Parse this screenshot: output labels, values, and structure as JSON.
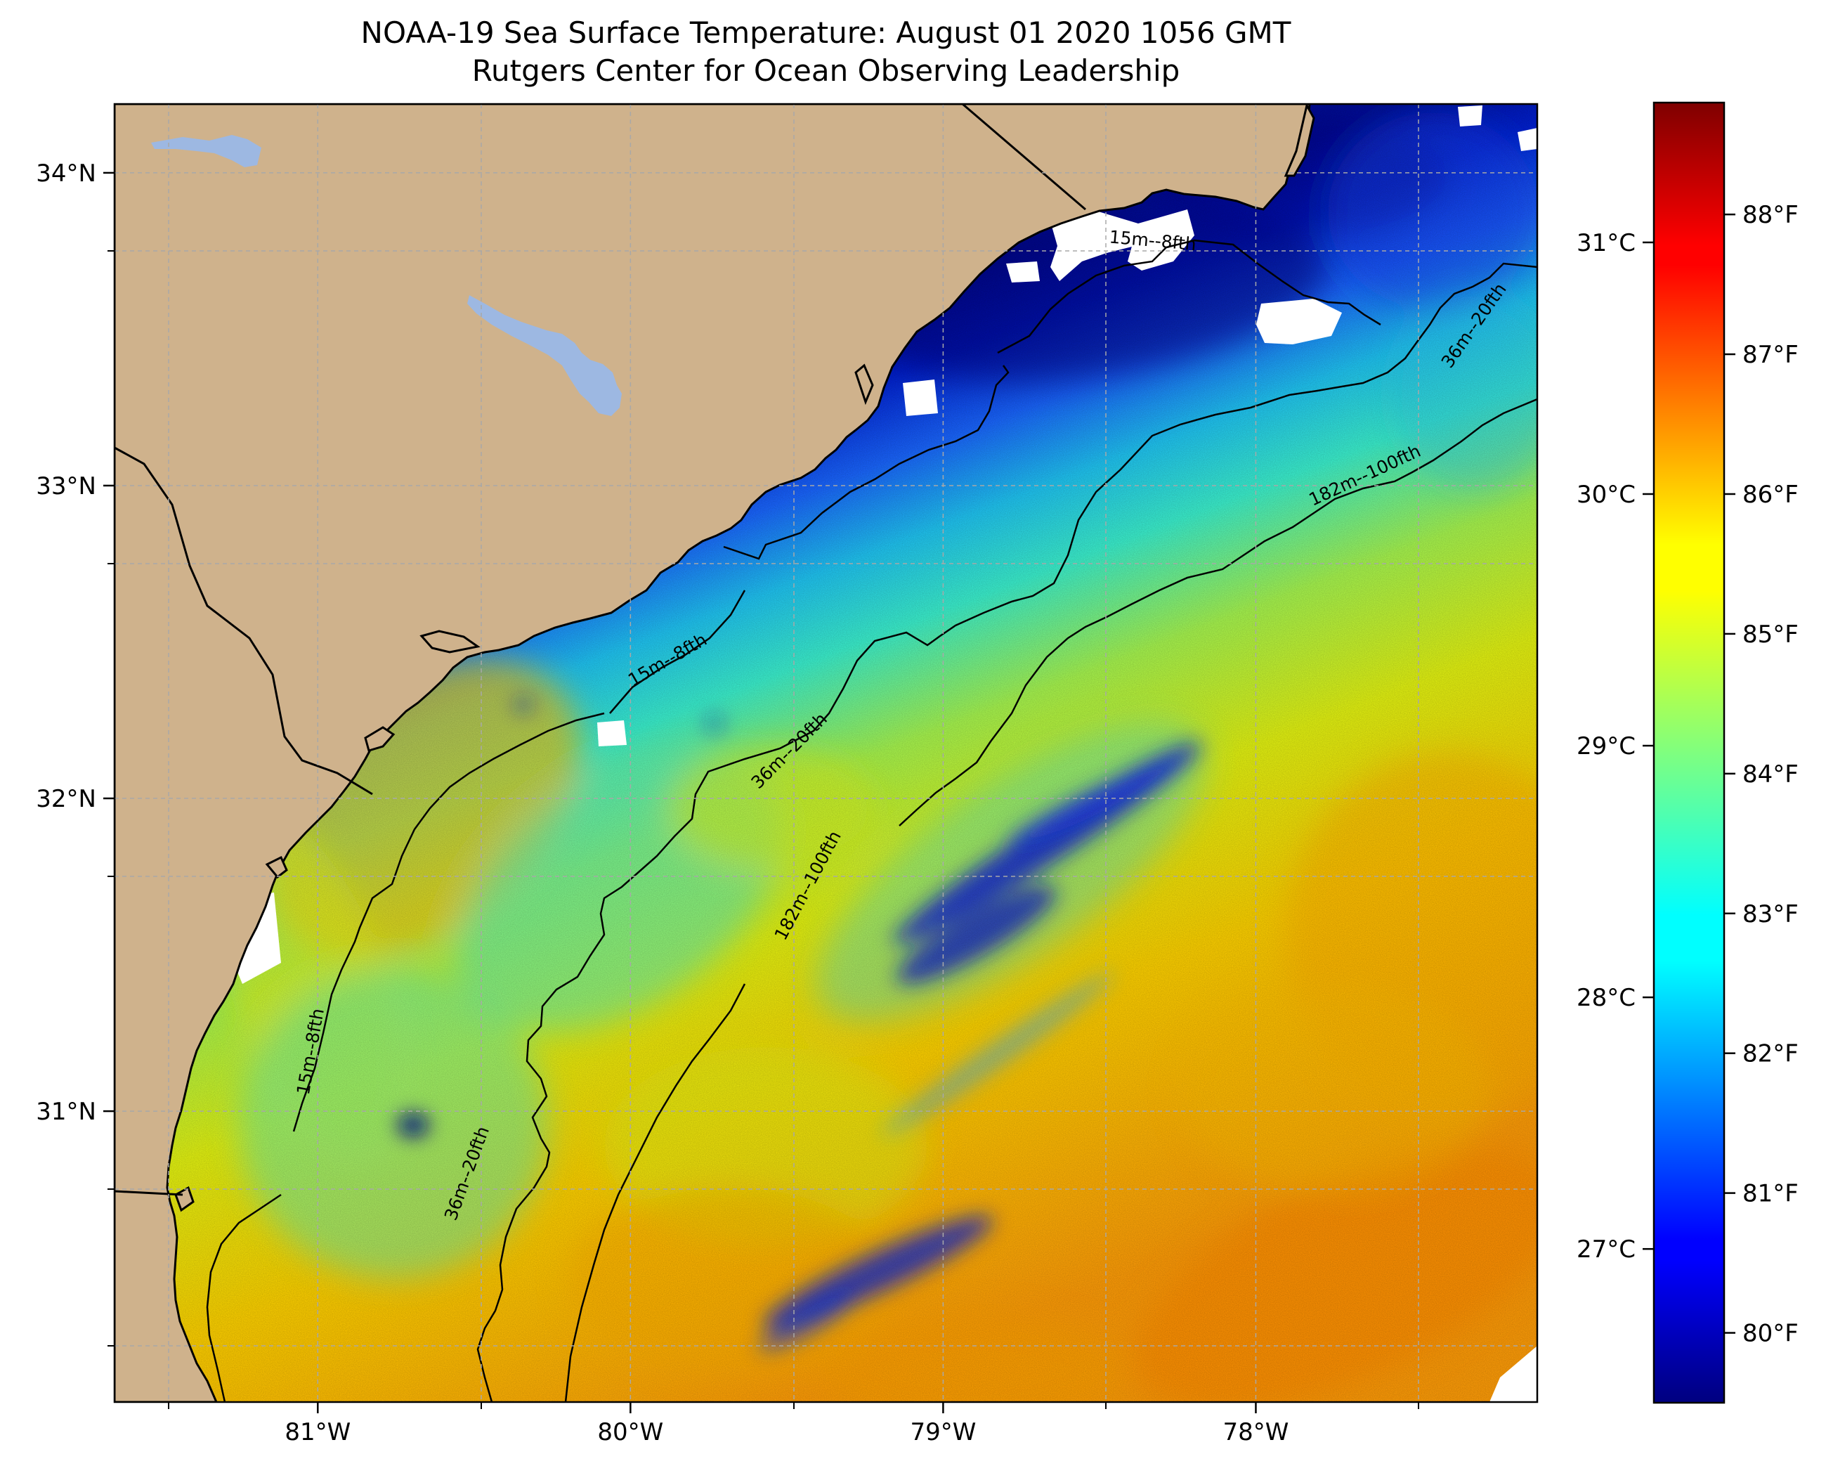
{
  "title": {
    "line1": "NOAA-19 Sea Surface Temperature: August 01 2020 1056 GMT",
    "line2": "Rutgers Center for Ocean Observing Leadership"
  },
  "map": {
    "lon_range": [
      -81.65,
      -77.1
    ],
    "lat_range": [
      30.07,
      34.22
    ],
    "x_ticks": [
      {
        "lon": -81,
        "label": "81°W"
      },
      {
        "lon": -80,
        "label": "80°W"
      },
      {
        "lon": -79,
        "label": "79°W"
      },
      {
        "lon": -78,
        "label": "78°W"
      }
    ],
    "y_ticks": [
      {
        "lat": 34,
        "label": "34°N"
      },
      {
        "lat": 33,
        "label": "33°N"
      },
      {
        "lat": 32,
        "label": "32°N"
      },
      {
        "lat": 31,
        "label": "31°N"
      }
    ],
    "contour_labels": [
      {
        "text": "15m--8fth",
        "lon": -78.33,
        "lat": 33.78,
        "angle": 5
      },
      {
        "text": "36m--20fth",
        "lon": -77.3,
        "lat": 33.51,
        "angle": -55
      },
      {
        "text": "182m--100fth",
        "lon": -77.65,
        "lat": 33.03,
        "angle": -25
      },
      {
        "text": "15m--8fth",
        "lon": -79.88,
        "lat": 32.44,
        "angle": -30
      },
      {
        "text": "36m--20fth",
        "lon": -79.49,
        "lat": 32.15,
        "angle": -45
      },
      {
        "text": "182m--100fth",
        "lon": -79.43,
        "lat": 31.72,
        "angle": -62
      },
      {
        "text": "15m--8fth",
        "lon": -81.02,
        "lat": 31.19,
        "angle": -80
      },
      {
        "text": "36m--20fth",
        "lon": -80.52,
        "lat": 30.8,
        "angle": -70
      }
    ],
    "colors": {
      "land": "#cfb28c",
      "lakes": "#9db8e2",
      "no_data": "#ffffff",
      "grid": "#a8a8a8"
    }
  },
  "colorbar": {
    "range_f": [
      79.5,
      88.8
    ],
    "colormap": "jet",
    "fahrenheit_ticks": [
      {
        "value": 80,
        "label": "80°F"
      },
      {
        "value": 81,
        "label": "81°F"
      },
      {
        "value": 82,
        "label": "82°F"
      },
      {
        "value": 83,
        "label": "83°F"
      },
      {
        "value": 84,
        "label": "84°F"
      },
      {
        "value": 85,
        "label": "85°F"
      },
      {
        "value": 86,
        "label": "86°F"
      },
      {
        "value": 87,
        "label": "87°F"
      },
      {
        "value": 88,
        "label": "88°F"
      }
    ],
    "celsius_ticks": [
      {
        "value": 27,
        "label": "27°C"
      },
      {
        "value": 28,
        "label": "28°C"
      },
      {
        "value": 29,
        "label": "29°C"
      },
      {
        "value": 30,
        "label": "30°C"
      },
      {
        "value": 31,
        "label": "31°C"
      }
    ]
  }
}
